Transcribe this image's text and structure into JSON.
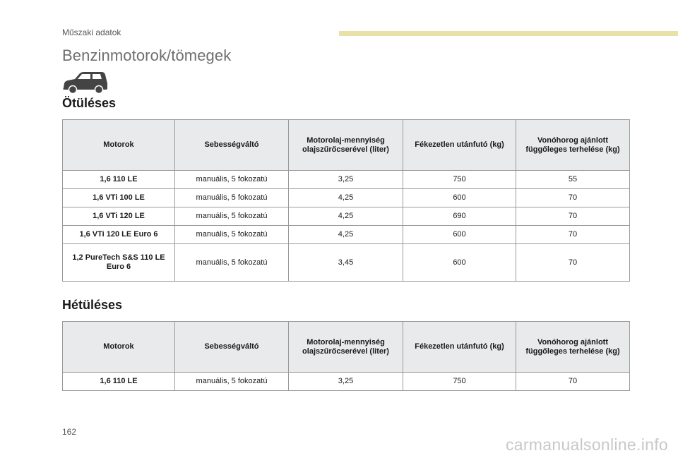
{
  "header": {
    "section": "Műszaki adatok",
    "title": "Benzinmotorok/tömegek"
  },
  "icons": {
    "car": "car-icon"
  },
  "sections": [
    {
      "heading": "Ötüléses",
      "columns": [
        "Motorok",
        "Sebességváltó",
        "Motorolaj-mennyiség olajszűrőcserével (liter)",
        "Fékezetlen utánfutó (kg)",
        "Vonóhorog ajánlott függőleges terhelése (kg)"
      ],
      "rows": [
        [
          "1,6 110 LE",
          "manuális, 5 fokozatú",
          "3,25",
          "750",
          "55"
        ],
        [
          "1,6 VTi 100 LE",
          "manuális, 5 fokozatú",
          "4,25",
          "600",
          "70"
        ],
        [
          "1,6 VTi 120 LE",
          "manuális, 5 fokozatú",
          "4,25",
          "690",
          "70"
        ],
        [
          "1,6 VTi 120 LE Euro 6",
          "manuális, 5 fokozatú",
          "4,25",
          "600",
          "70"
        ],
        [
          "1,2 PureTech S&S 110 LE Euro 6",
          "manuális, 5 fokozatú",
          "3,45",
          "600",
          "70"
        ]
      ]
    },
    {
      "heading": "Hétüléses",
      "columns": [
        "Motorok",
        "Sebességváltó",
        "Motorolaj-mennyiség olajszűrőcserével (liter)",
        "Fékezetlen utánfutó (kg)",
        "Vonóhorog ajánlott függőleges terhelése (kg)"
      ],
      "rows": [
        [
          "1,6 110 LE",
          "manuális, 5 fokozatú",
          "3,25",
          "750",
          "70"
        ]
      ]
    }
  ],
  "footer": {
    "page_number": "162",
    "watermark": "carmanualsonline.info"
  },
  "colors": {
    "accent_bar": "#e8e1a8",
    "header_bg": "#e8eaeb",
    "border": "#9a9a9a"
  }
}
